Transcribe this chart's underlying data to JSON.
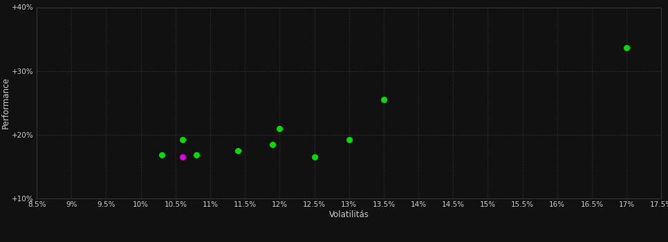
{
  "background_color": "#111111",
  "plot_bg_color": "#111111",
  "grid_color": "#333333",
  "text_color": "#cccccc",
  "xlabel": "Volatilitás",
  "ylabel": "Performance",
  "xlim": [
    0.085,
    0.175
  ],
  "ylim": [
    0.1,
    0.4
  ],
  "xticks": [
    0.085,
    0.09,
    0.095,
    0.1,
    0.105,
    0.11,
    0.115,
    0.12,
    0.125,
    0.13,
    0.135,
    0.14,
    0.145,
    0.15,
    0.155,
    0.16,
    0.165,
    0.17,
    0.175
  ],
  "yticks": [
    0.1,
    0.2,
    0.3,
    0.4
  ],
  "ytick_labels": [
    "+10%",
    "+20%",
    "+30%",
    "+40%"
  ],
  "green_points": [
    [
      0.103,
      0.168
    ],
    [
      0.106,
      0.192
    ],
    [
      0.108,
      0.168
    ],
    [
      0.114,
      0.175
    ],
    [
      0.119,
      0.185
    ],
    [
      0.12,
      0.21
    ],
    [
      0.125,
      0.165
    ],
    [
      0.13,
      0.192
    ],
    [
      0.135,
      0.255
    ],
    [
      0.17,
      0.337
    ]
  ],
  "magenta_points": [
    [
      0.106,
      0.165
    ]
  ],
  "green_color": "#00dd00",
  "magenta_color": "#dd00dd",
  "marker_size": 30
}
